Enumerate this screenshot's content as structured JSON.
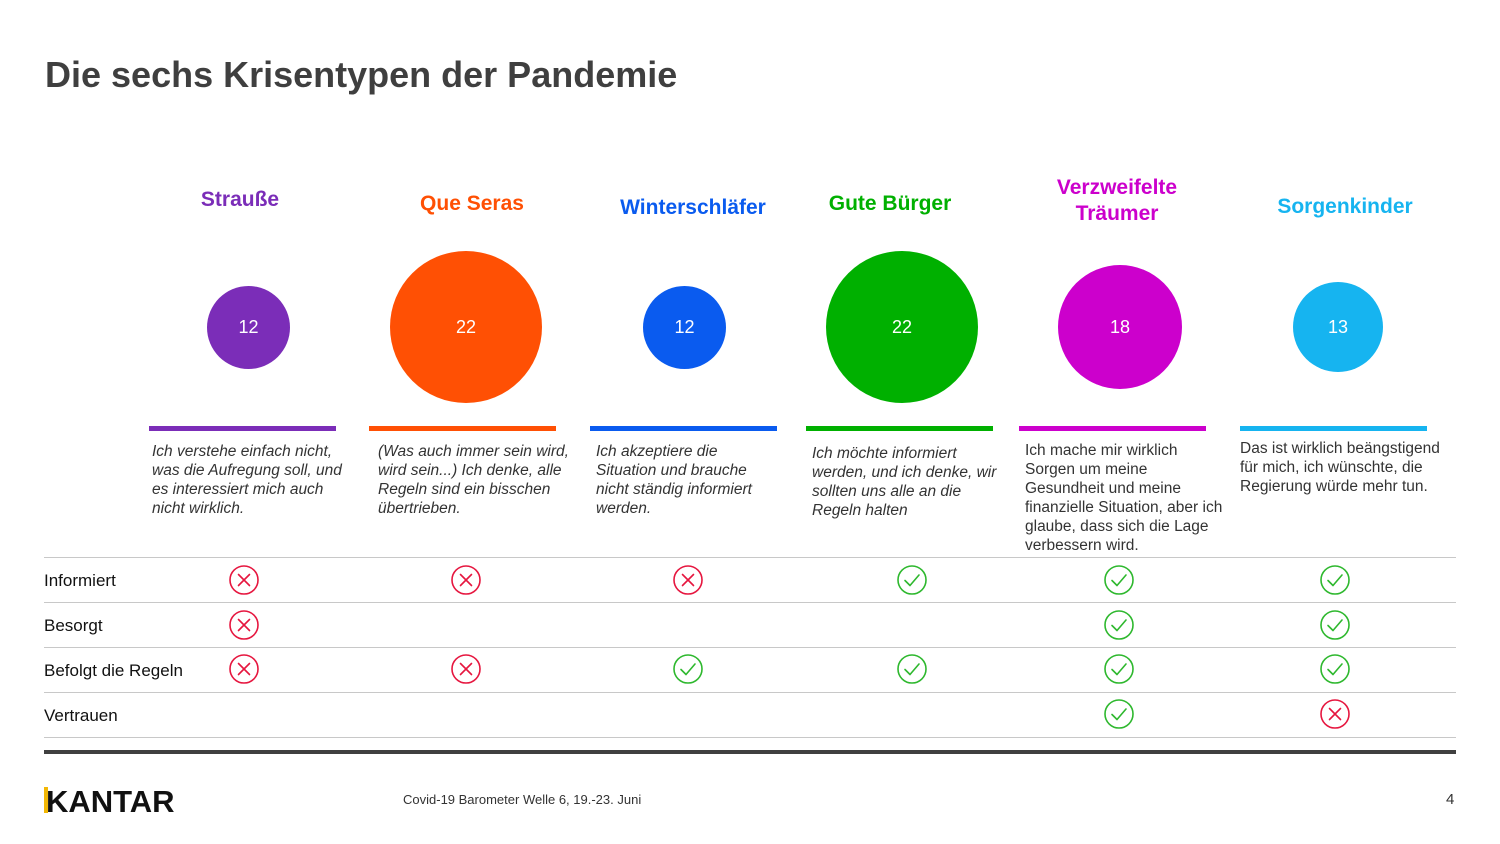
{
  "title": "Die sechs Krisentypen der Pandemie",
  "colors": {
    "check": "#2eb82e",
    "cross": "#e6163f",
    "divider": "#c8c8c8"
  },
  "types": [
    {
      "name": "Strauße",
      "value": "12",
      "color": "#7b2db8",
      "quote": "Ich verstehe einfach nicht, was die Aufregung soll, und es interessiert mich auch nicht wirklich."
    },
    {
      "name": "Que Seras",
      "value": "22",
      "color": "#ff5004",
      "quote": "(Was auch immer sein wird, wird sein...) Ich denke, alle Regeln sind ein bisschen übertrieben."
    },
    {
      "name": "Winterschläfer",
      "value": "12",
      "color": "#0a5bef",
      "quote": "Ich akzeptiere die Situation und brauche nicht ständig informiert werden."
    },
    {
      "name": "Gute Bürger",
      "value": "22",
      "color": "#00b000",
      "quote": "Ich möchte informiert werden, und ich denke, wir sollten uns alle an die Regeln halten"
    },
    {
      "name_line1": "Verzweifelte",
      "name_line2": "Träumer",
      "value": "18",
      "color": "#cc00cc",
      "quote": "Ich mache mir wirklich Sorgen um meine Gesundheit und meine finanzielle Situation, aber ich glaube, dass sich die Lage verbessern wird."
    },
    {
      "name": "Sorgenkinder",
      "value": "13",
      "color": "#16b4f0",
      "quote": "Das ist wirklich beängstigend für mich, ich wünschte, die Regierung würde mehr tun."
    }
  ],
  "rows": [
    {
      "label": "Informiert",
      "marks": [
        "cross",
        "cross",
        "cross",
        "check",
        "check",
        "check"
      ]
    },
    {
      "label": "Besorgt",
      "marks": [
        "cross",
        "",
        "",
        "",
        "check",
        "check"
      ]
    },
    {
      "label": "Befolgt die Regeln",
      "marks": [
        "cross",
        "cross",
        "check",
        "check",
        "check",
        "check"
      ]
    },
    {
      "label": "Vertrauen",
      "marks": [
        "",
        "",
        "",
        "",
        "check",
        "cross"
      ]
    }
  ],
  "footer": {
    "logo_text": "KANTAR",
    "source": "Covid-19 Barometer Welle 6, 19.-23. Juni",
    "page": "4"
  }
}
